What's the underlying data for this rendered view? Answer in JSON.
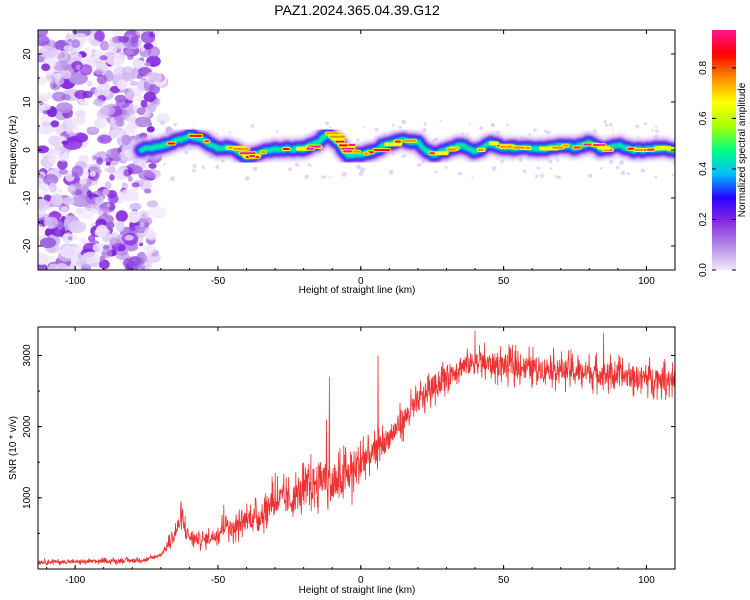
{
  "title": "PAZ1.2024.365.04.39.G12",
  "chart_data": [
    {
      "type": "heatmap",
      "title": "PAZ1.2024.365.04.39.G12",
      "xlabel": "Height of straight line (km)",
      "ylabel": "Frequency (Hz)",
      "xlim": [
        -113,
        110
      ],
      "ylim": [
        -25,
        25
      ],
      "xticks": [
        -100,
        -50,
        0,
        50,
        100
      ],
      "yticks": [
        -20,
        -10,
        0,
        10,
        20
      ],
      "colorbar": {
        "label": "Normalized spectral amplitude",
        "range": [
          0.0,
          0.95
        ],
        "ticks": [
          0.0,
          0.2,
          0.4,
          0.6,
          0.8
        ],
        "colormap": [
          "#f2e8fb",
          "#b48be6",
          "#8a2be2",
          "#2a00ff",
          "#00bfff",
          "#00ff7f",
          "#aaff00",
          "#ffff00",
          "#ff8c00",
          "#ff0000",
          "#ff1493"
        ]
      },
      "noise_region_x": [
        -113,
        -70
      ],
      "ridge": {
        "x": [
          -77,
          -70,
          -65,
          -60,
          -55,
          -50,
          -45,
          -40,
          -35,
          -30,
          -25,
          -20,
          -15,
          -12,
          -8,
          -5,
          0,
          5,
          10,
          15,
          20,
          25,
          30,
          35,
          40,
          45,
          50,
          55,
          60,
          65,
          70,
          75,
          80,
          85,
          90,
          95,
          100,
          105,
          110
        ],
        "frequency_hz": [
          0,
          0.8,
          1.8,
          3,
          2,
          0.3,
          0.5,
          -1.5,
          -0.5,
          0.2,
          0.2,
          0.3,
          1.5,
          3.5,
          1.5,
          -1,
          -1,
          0,
          1.5,
          2,
          1.5,
          -1,
          0,
          1,
          -0.5,
          1.5,
          0.5,
          0.5,
          0.3,
          0.3,
          1,
          0.5,
          1.5,
          0,
          1,
          0,
          0,
          0.5,
          0
        ]
      }
    },
    {
      "type": "line",
      "xlabel": "Height of straight line (km)",
      "ylabel": "SNR (10 * v/v)",
      "xlim": [
        -113,
        110
      ],
      "ylim": [
        0,
        3400
      ],
      "xticks": [
        -100,
        -50,
        0,
        50,
        100
      ],
      "yticks": [
        1000,
        2000,
        3000
      ],
      "series_color": "#ee3333",
      "series": [
        {
          "x": [
            -113,
            -100,
            -90,
            -80,
            -75,
            -70,
            -68,
            -65,
            -63,
            -60,
            -55,
            -50,
            -47,
            -45,
            -40,
            -35,
            -30,
            -25,
            -20,
            -15,
            -12,
            -10,
            -5,
            0,
            5,
            10,
            15,
            20,
            25,
            30,
            35,
            40,
            45,
            50,
            55,
            60,
            65,
            70,
            75,
            80,
            85,
            90,
            95,
            100,
            105,
            110
          ],
          "values": [
            100,
            100,
            110,
            120,
            130,
            200,
            300,
            500,
            700,
            450,
            400,
            500,
            650,
            550,
            700,
            750,
            1000,
            950,
            1100,
            1250,
            1300,
            1150,
            1300,
            1500,
            1650,
            1850,
            2100,
            2350,
            2550,
            2700,
            2850,
            2900,
            2880,
            2860,
            2850,
            2830,
            2820,
            2800,
            2780,
            2760,
            2740,
            2720,
            2700,
            2690,
            2680,
            2670
          ],
          "spikes": [
            {
              "x": -63,
              "value": 950
            },
            {
              "x": -48,
              "value": 900
            },
            {
              "x": -31,
              "value": 1300
            },
            {
              "x": -30,
              "value": 1350
            },
            {
              "x": -20,
              "value": 1500
            },
            {
              "x": -12,
              "value": 2100
            },
            {
              "x": -11,
              "value": 2700
            },
            {
              "x": 6,
              "value": 3000
            },
            {
              "x": 40,
              "value": 3350
            },
            {
              "x": 85,
              "value": 3320
            }
          ]
        }
      ]
    }
  ]
}
